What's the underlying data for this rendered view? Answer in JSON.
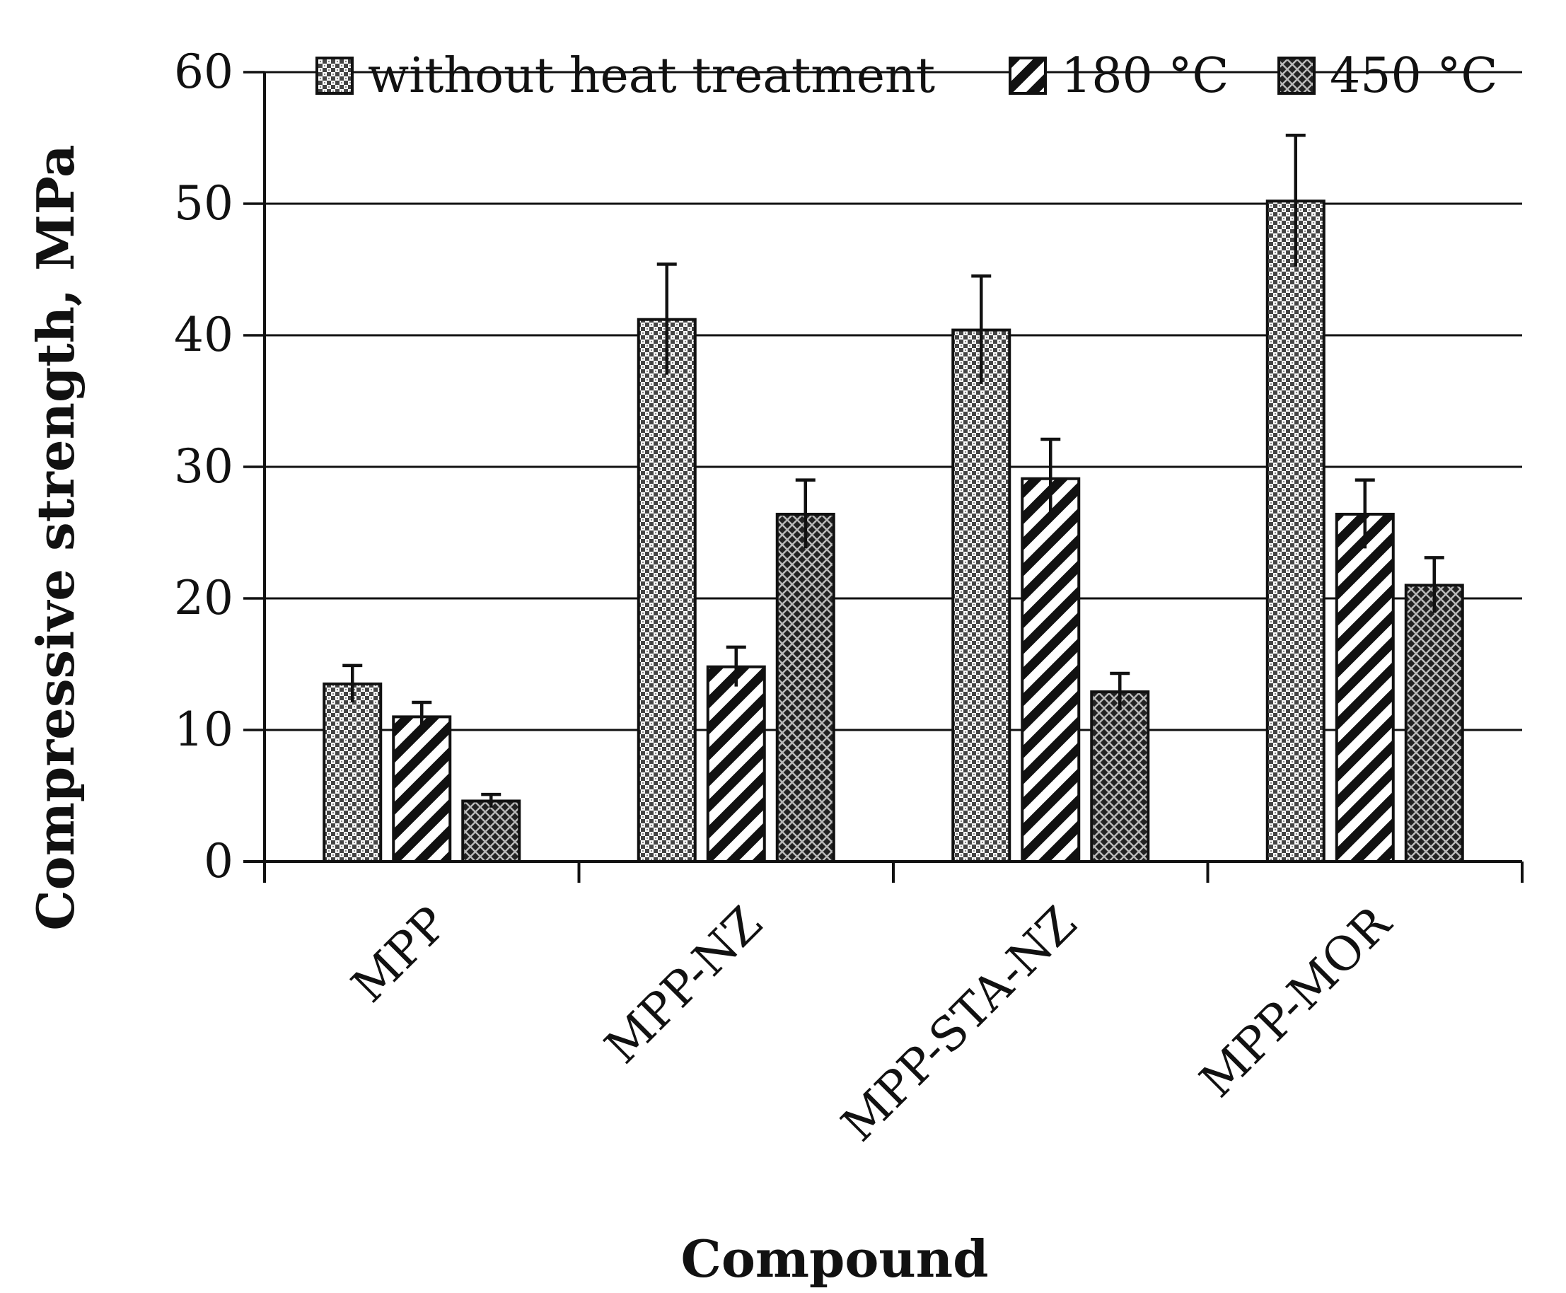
{
  "chart_data": {
    "type": "bar",
    "title": "",
    "xlabel": "Compound",
    "ylabel": "Compressive strength, MPa",
    "ylim": [
      0,
      60
    ],
    "yticks": [
      0,
      10,
      20,
      30,
      40,
      50,
      60
    ],
    "grid": true,
    "legend_position": "top",
    "categories": [
      "MPP",
      "MPP-NZ",
      "MPP-STA-NZ",
      "MPP-MOR"
    ],
    "series": [
      {
        "name": "without heat treatment",
        "pattern": "checker",
        "values": [
          13.5,
          41.2,
          40.4,
          50.2
        ],
        "errors": [
          1.4,
          4.2,
          4.1,
          5.0
        ]
      },
      {
        "name": "180 °C",
        "pattern": "diagonal",
        "values": [
          11.0,
          14.8,
          29.1,
          26.4
        ],
        "errors": [
          1.1,
          1.5,
          3.0,
          2.6
        ]
      },
      {
        "name": "450 °C",
        "pattern": "crosshatch",
        "values": [
          4.6,
          26.4,
          12.9,
          21.0
        ],
        "errors": [
          0.5,
          2.6,
          1.4,
          2.1
        ]
      }
    ]
  }
}
